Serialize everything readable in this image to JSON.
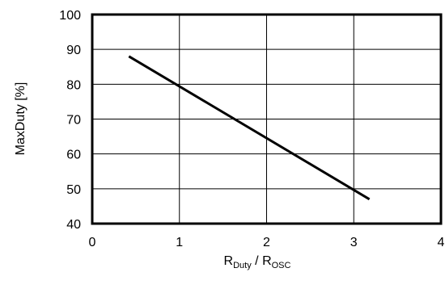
{
  "chart_data": {
    "type": "line",
    "title": "",
    "ylabel": "MaxDuty [%]",
    "xlabel": {
      "base1": "R",
      "sub1": "Duty",
      "sep": " / ",
      "base2": "R",
      "sub2": "OSC"
    },
    "xlim": [
      0,
      4
    ],
    "ylim": [
      40,
      100
    ],
    "xticks": [
      "0",
      "1",
      "2",
      "3",
      "4"
    ],
    "yticks": [
      "40",
      "50",
      "60",
      "70",
      "80",
      "90",
      "100"
    ],
    "grid": true,
    "series": [
      {
        "points": [
          [
            0.42,
            88
          ],
          [
            3.18,
            47
          ]
        ],
        "color": "#000000"
      }
    ]
  }
}
